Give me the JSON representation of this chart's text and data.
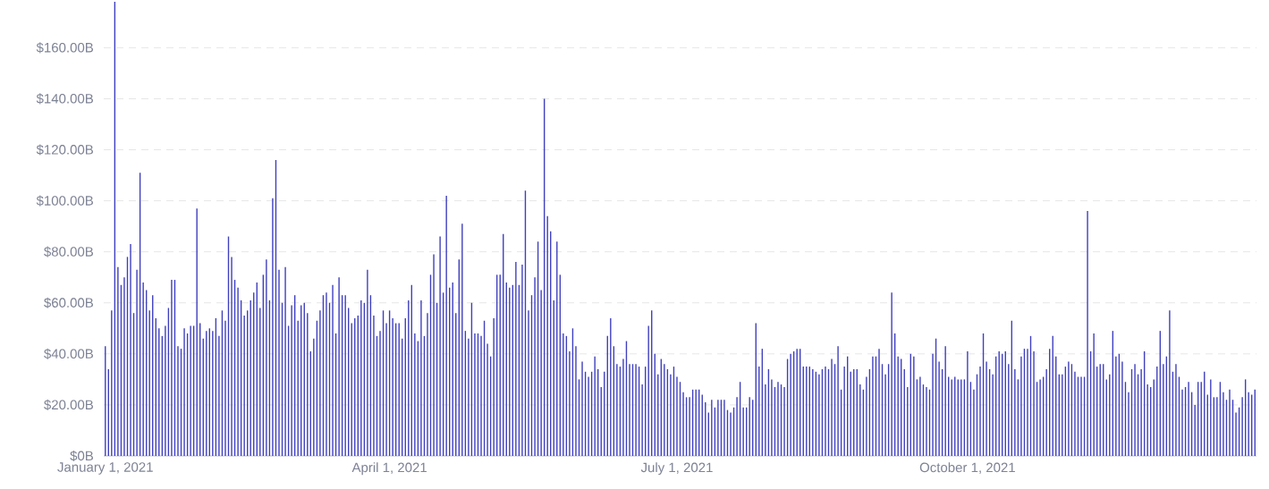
{
  "chart_data": {
    "type": "bar",
    "color": "#3f3fbf",
    "grid": "y",
    "xlim": [
      "2020-12-31T12:00",
      "2021-12-31T12:00"
    ],
    "xticks": [
      {
        "value": "2021-01-01",
        "label": "January 1, 2021"
      },
      {
        "value": "2021-04-01",
        "label": "April 1, 2021"
      },
      {
        "value": "2021-07-01",
        "label": "July 1, 2021"
      },
      {
        "value": "2021-10-01",
        "label": "October 1, 2021"
      }
    ],
    "ylim": [
      0,
      178
    ],
    "yticks": [
      {
        "value": 0,
        "label": "$0B"
      },
      {
        "value": 20,
        "label": "$20.00B"
      },
      {
        "value": 40,
        "label": "$40.00B"
      },
      {
        "value": 60,
        "label": "$60.00B"
      },
      {
        "value": 80,
        "label": "$80.00B"
      },
      {
        "value": 100,
        "label": "$100.00B"
      },
      {
        "value": 120,
        "label": "$120.00B"
      },
      {
        "value": 140,
        "label": "$140.00B"
      },
      {
        "value": 160,
        "label": "$160.00B"
      }
    ],
    "x": [
      "2021-01-01",
      "2021-01-02",
      "2021-01-03",
      "2021-01-04",
      "2021-01-05",
      "2021-01-06",
      "2021-01-07",
      "2021-01-08",
      "2021-01-09",
      "2021-01-10",
      "2021-01-11",
      "2021-01-12",
      "2021-01-13",
      "2021-01-14",
      "2021-01-15",
      "2021-01-16",
      "2021-01-17",
      "2021-01-18",
      "2021-01-19",
      "2021-01-20",
      "2021-01-21",
      "2021-01-22",
      "2021-01-23",
      "2021-01-24",
      "2021-01-25",
      "2021-01-26",
      "2021-01-27",
      "2021-01-28",
      "2021-01-29",
      "2021-01-30",
      "2021-01-31",
      "2021-02-01",
      "2021-02-02",
      "2021-02-03",
      "2021-02-04",
      "2021-02-05",
      "2021-02-06",
      "2021-02-07",
      "2021-02-08",
      "2021-02-09",
      "2021-02-10",
      "2021-02-11",
      "2021-02-12",
      "2021-02-13",
      "2021-02-14",
      "2021-02-15",
      "2021-02-16",
      "2021-02-17",
      "2021-02-18",
      "2021-02-19",
      "2021-02-20",
      "2021-02-21",
      "2021-02-22",
      "2021-02-23",
      "2021-02-24",
      "2021-02-25",
      "2021-02-26",
      "2021-02-27",
      "2021-02-28",
      "2021-03-01",
      "2021-03-02",
      "2021-03-03",
      "2021-03-04",
      "2021-03-05",
      "2021-03-06",
      "2021-03-07",
      "2021-03-08",
      "2021-03-09",
      "2021-03-10",
      "2021-03-11",
      "2021-03-12",
      "2021-03-13",
      "2021-03-14",
      "2021-03-15",
      "2021-03-16",
      "2021-03-17",
      "2021-03-18",
      "2021-03-19",
      "2021-03-20",
      "2021-03-21",
      "2021-03-22",
      "2021-03-23",
      "2021-03-24",
      "2021-03-25",
      "2021-03-26",
      "2021-03-27",
      "2021-03-28",
      "2021-03-29",
      "2021-03-30",
      "2021-03-31",
      "2021-04-01",
      "2021-04-02",
      "2021-04-03",
      "2021-04-04",
      "2021-04-05",
      "2021-04-06",
      "2021-04-07",
      "2021-04-08",
      "2021-04-09",
      "2021-04-10",
      "2021-04-11",
      "2021-04-12",
      "2021-04-13",
      "2021-04-14",
      "2021-04-15",
      "2021-04-16",
      "2021-04-17",
      "2021-04-18",
      "2021-04-19",
      "2021-04-20",
      "2021-04-21",
      "2021-04-22",
      "2021-04-23",
      "2021-04-24",
      "2021-04-25",
      "2021-04-26",
      "2021-04-27",
      "2021-04-28",
      "2021-04-29",
      "2021-04-30",
      "2021-05-01",
      "2021-05-02",
      "2021-05-03",
      "2021-05-04",
      "2021-05-05",
      "2021-05-06",
      "2021-05-07",
      "2021-05-08",
      "2021-05-09",
      "2021-05-10",
      "2021-05-11",
      "2021-05-12",
      "2021-05-13",
      "2021-05-14",
      "2021-05-15",
      "2021-05-16",
      "2021-05-17",
      "2021-05-18",
      "2021-05-19",
      "2021-05-20",
      "2021-05-21",
      "2021-05-22",
      "2021-05-23",
      "2021-05-24",
      "2021-05-25",
      "2021-05-26",
      "2021-05-27",
      "2021-05-28",
      "2021-05-29",
      "2021-05-30",
      "2021-05-31",
      "2021-06-01",
      "2021-06-02",
      "2021-06-03",
      "2021-06-04",
      "2021-06-05",
      "2021-06-06",
      "2021-06-07",
      "2021-06-08",
      "2021-06-09",
      "2021-06-10",
      "2021-06-11",
      "2021-06-12",
      "2021-06-13",
      "2021-06-14",
      "2021-06-15",
      "2021-06-16",
      "2021-06-17",
      "2021-06-18",
      "2021-06-19",
      "2021-06-20",
      "2021-06-21",
      "2021-06-22",
      "2021-06-23",
      "2021-06-24",
      "2021-06-25",
      "2021-06-26",
      "2021-06-27",
      "2021-06-28",
      "2021-06-29",
      "2021-06-30",
      "2021-07-01",
      "2021-07-02",
      "2021-07-03",
      "2021-07-04",
      "2021-07-05",
      "2021-07-06",
      "2021-07-07",
      "2021-07-08",
      "2021-07-09",
      "2021-07-10",
      "2021-07-11",
      "2021-07-12",
      "2021-07-13",
      "2021-07-14",
      "2021-07-15",
      "2021-07-16",
      "2021-07-17",
      "2021-07-18",
      "2021-07-19",
      "2021-07-20",
      "2021-07-21",
      "2021-07-22",
      "2021-07-23",
      "2021-07-24",
      "2021-07-25",
      "2021-07-26",
      "2021-07-27",
      "2021-07-28",
      "2021-07-29",
      "2021-07-30",
      "2021-07-31",
      "2021-08-01",
      "2021-08-02",
      "2021-08-03",
      "2021-08-04",
      "2021-08-05",
      "2021-08-06",
      "2021-08-07",
      "2021-08-08",
      "2021-08-09",
      "2021-08-10",
      "2021-08-11",
      "2021-08-12",
      "2021-08-13",
      "2021-08-14",
      "2021-08-15",
      "2021-08-16",
      "2021-08-17",
      "2021-08-18",
      "2021-08-19",
      "2021-08-20",
      "2021-08-21",
      "2021-08-22",
      "2021-08-23",
      "2021-08-24",
      "2021-08-25",
      "2021-08-26",
      "2021-08-27",
      "2021-08-28",
      "2021-08-29",
      "2021-08-30",
      "2021-08-31",
      "2021-09-01",
      "2021-09-02",
      "2021-09-03",
      "2021-09-04",
      "2021-09-05",
      "2021-09-06",
      "2021-09-07",
      "2021-09-08",
      "2021-09-09",
      "2021-09-10",
      "2021-09-11",
      "2021-09-12",
      "2021-09-13",
      "2021-09-14",
      "2021-09-15",
      "2021-09-16",
      "2021-09-17",
      "2021-09-18",
      "2021-09-19",
      "2021-09-20",
      "2021-09-21",
      "2021-09-22",
      "2021-09-23",
      "2021-09-24",
      "2021-09-25",
      "2021-09-26",
      "2021-09-27",
      "2021-09-28",
      "2021-09-29",
      "2021-09-30",
      "2021-10-01",
      "2021-10-02",
      "2021-10-03",
      "2021-10-04",
      "2021-10-05",
      "2021-10-06",
      "2021-10-07",
      "2021-10-08",
      "2021-10-09",
      "2021-10-10",
      "2021-10-11",
      "2021-10-12",
      "2021-10-13",
      "2021-10-14",
      "2021-10-15",
      "2021-10-16",
      "2021-10-17",
      "2021-10-18",
      "2021-10-19",
      "2021-10-20",
      "2021-10-21",
      "2021-10-22",
      "2021-10-23",
      "2021-10-24",
      "2021-10-25",
      "2021-10-26",
      "2021-10-27",
      "2021-10-28",
      "2021-10-29",
      "2021-10-30",
      "2021-10-31",
      "2021-11-01",
      "2021-11-02",
      "2021-11-03",
      "2021-11-04",
      "2021-11-05",
      "2021-11-06",
      "2021-11-07",
      "2021-11-08",
      "2021-11-09",
      "2021-11-10",
      "2021-11-11",
      "2021-11-12",
      "2021-11-13",
      "2021-11-14",
      "2021-11-15",
      "2021-11-16",
      "2021-11-17",
      "2021-11-18",
      "2021-11-19",
      "2021-11-20",
      "2021-11-21",
      "2021-11-22",
      "2021-11-23",
      "2021-11-24",
      "2021-11-25",
      "2021-11-26",
      "2021-11-27",
      "2021-11-28",
      "2021-11-29",
      "2021-11-30",
      "2021-12-01",
      "2021-12-02",
      "2021-12-03",
      "2021-12-04",
      "2021-12-05",
      "2021-12-06",
      "2021-12-07",
      "2021-12-08",
      "2021-12-09",
      "2021-12-10",
      "2021-12-11",
      "2021-12-12",
      "2021-12-13",
      "2021-12-14",
      "2021-12-15",
      "2021-12-16",
      "2021-12-17",
      "2021-12-18",
      "2021-12-19",
      "2021-12-20",
      "2021-12-21",
      "2021-12-22",
      "2021-12-23",
      "2021-12-24",
      "2021-12-25",
      "2021-12-26",
      "2021-12-27",
      "2021-12-28",
      "2021-12-29",
      "2021-12-30",
      "2021-12-31"
    ],
    "values": [
      43,
      34,
      57,
      178,
      74,
      67,
      70,
      78,
      83,
      56,
      73,
      111,
      68,
      65,
      57,
      63,
      54,
      50,
      47,
      51,
      58,
      69,
      69,
      43,
      42,
      50,
      48,
      51,
      51,
      97,
      52,
      46,
      49,
      50,
      49,
      54,
      47,
      57,
      53,
      86,
      78,
      69,
      66,
      61,
      55,
      57,
      61,
      64,
      68,
      58,
      71,
      77,
      61,
      101,
      116,
      73,
      60,
      74,
      51,
      59,
      63,
      53,
      59,
      60,
      56,
      41,
      46,
      53,
      57,
      63,
      64,
      60,
      67,
      48,
      70,
      63,
      63,
      58,
      52,
      54,
      55,
      61,
      60,
      73,
      63,
      55,
      47,
      49,
      57,
      52,
      57,
      54,
      52,
      52,
      46,
      54,
      61,
      67,
      48,
      45,
      61,
      47,
      56,
      71,
      79,
      60,
      86,
      64,
      102,
      66,
      68,
      56,
      77,
      91,
      49,
      46,
      60,
      48,
      48,
      47,
      53,
      44,
      39,
      54,
      71,
      71,
      87,
      68,
      66,
      67,
      76,
      67,
      75,
      104,
      57,
      63,
      70,
      84,
      65,
      140,
      94,
      88,
      61,
      84,
      71,
      48,
      47,
      41,
      50,
      43,
      30,
      37,
      33,
      31,
      33,
      39,
      34,
      27,
      33,
      47,
      54,
      43,
      36,
      35,
      38,
      45,
      36,
      36,
      36,
      35,
      28,
      35,
      51,
      57,
      40,
      32,
      38,
      36,
      34,
      32,
      35,
      31,
      29,
      25,
      23,
      23,
      26,
      26,
      26,
      24,
      21,
      17,
      22,
      19,
      22,
      22,
      22,
      18,
      17,
      19,
      23,
      29,
      19,
      19,
      23,
      22,
      52,
      35,
      42,
      28,
      34,
      30,
      27,
      29,
      28,
      27,
      38,
      40,
      41,
      42,
      42,
      35,
      35,
      35,
      34,
      33,
      32,
      34,
      35,
      34,
      38,
      36,
      43,
      26,
      35,
      39,
      33,
      34,
      34,
      28,
      26,
      31,
      34,
      39,
      39,
      42,
      36,
      32,
      36,
      64,
      48,
      39,
      38,
      34,
      27,
      40,
      39,
      30,
      31,
      28,
      27,
      26,
      40,
      46,
      37,
      34,
      43,
      31,
      30,
      31,
      30,
      30,
      30,
      41,
      29,
      26,
      32,
      35,
      48,
      37,
      34,
      32,
      39,
      41,
      40,
      41,
      36,
      53,
      34,
      30,
      39,
      42,
      42,
      47,
      41,
      29,
      30,
      31,
      34,
      42,
      47,
      39,
      32,
      32,
      35,
      37,
      36,
      33,
      31,
      31,
      31,
      96,
      41,
      48,
      35,
      36,
      36,
      30,
      32,
      49,
      39,
      40,
      37,
      29,
      25,
      34,
      36,
      32,
      34,
      41,
      28,
      27,
      30,
      35,
      49,
      36,
      39,
      57,
      33,
      36,
      31,
      26,
      27,
      29,
      25,
      20,
      29,
      29,
      33,
      24,
      30,
      23,
      23,
      29,
      25,
      22,
      26,
      22,
      17,
      19,
      23,
      30,
      25,
      24,
      26
    ]
  }
}
